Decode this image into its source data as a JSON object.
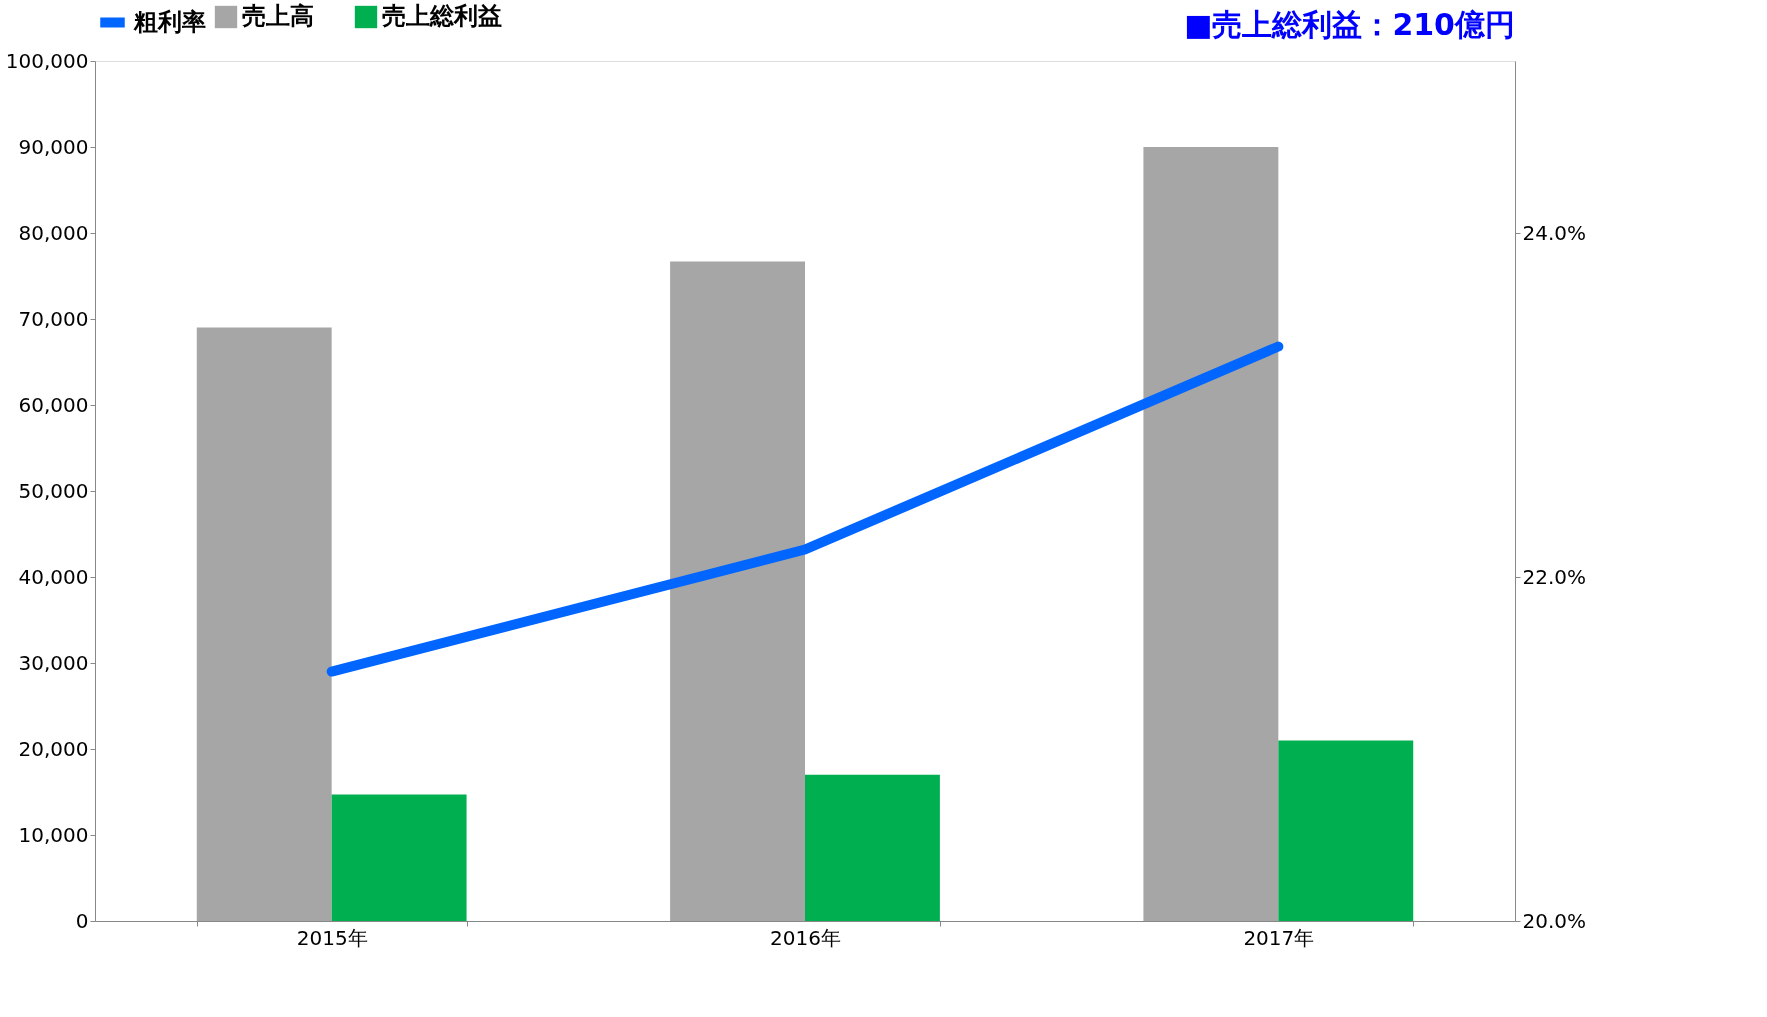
{
  "chart_data": {
    "type": "bar",
    "categories": [
      "2015年",
      "2016年",
      "2017年"
    ],
    "series": [
      {
        "name": "売上高",
        "color": "#a6a6a6",
        "values": [
          69000,
          76700,
          90000
        ]
      },
      {
        "name": "売上総利益",
        "color": "#00b050",
        "values": [
          14700,
          17000,
          21000
        ]
      },
      {
        "name": "粗利率",
        "type": "line",
        "axis": "y2",
        "color": "#0066ff",
        "values": [
          21.45,
          22.16,
          23.34
        ]
      }
    ],
    "ylim": [
      0,
      100000
    ],
    "yticks": [
      0,
      {
        "value": 10000,
        "label": "10,000"
      },
      {
        "value": 20000,
        "label": "20,000"
      },
      {
        "value": 30000,
        "label": "30,000"
      },
      {
        "value": 40000,
        "label": "40,000"
      },
      {
        "value": 50000,
        "label": "50,000"
      },
      {
        "value": 60000,
        "label": "60,000"
      },
      {
        "value": 70000,
        "label": "70,000"
      },
      {
        "value": 80000,
        "label": "80,000"
      },
      {
        "value": 90000,
        "label": "90,000"
      },
      {
        "value": 100000,
        "label": "100,000"
      }
    ],
    "y2lim": [
      20,
      25
    ],
    "y2ticks": [
      {
        "value": 20,
        "label": "20.0%"
      },
      {
        "value": 22,
        "label": "22.0%"
      },
      {
        "value": 24,
        "label": "24.0%"
      }
    ],
    "legend": "top",
    "grid": false,
    "annotations": [
      "■売上総利益：210億円"
    ]
  }
}
